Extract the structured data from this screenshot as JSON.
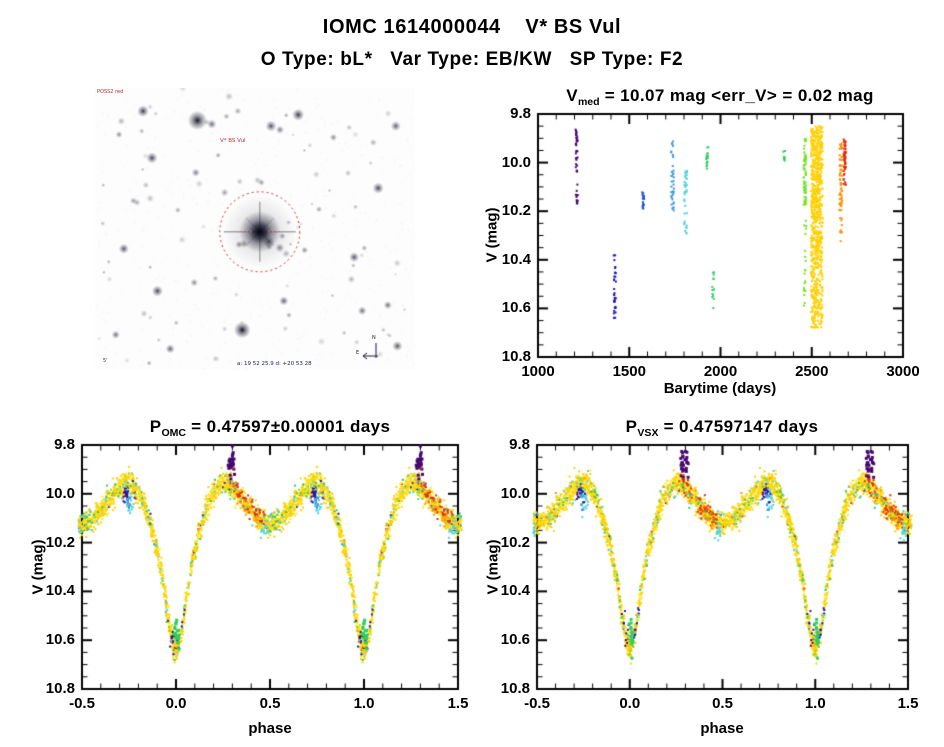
{
  "page": {
    "title": "IOMC 1614000044    V* BS Vul",
    "subtitle": "O Type: bL*   Var Type: EB/KW   SP Type: F2"
  },
  "palette": {
    "purple": "#46086e",
    "navy": "#1b18b4",
    "blue": "#2053d4",
    "steel": "#3b96dc",
    "cyan": "#4fd2d8",
    "green": "#2ecf62",
    "green2": "#27d046",
    "lightgreen": "#72e229",
    "gold": "#fdd005",
    "yellow": "#ffe81e",
    "orange": "#fd9303",
    "red": "#e22d0d"
  },
  "finder": {
    "description": "grayscale sky survey finding chart with target circled",
    "circle_color": "#cc2a2a",
    "annotations": {
      "survey": "POSS2 red",
      "target": "V* BS Vul",
      "coords": "a: 19 52 25.9  d: +20 53 28",
      "scale": "5'",
      "compass_n": "N",
      "compass_e": "E"
    },
    "stars": [
      [
        0.515,
        0.51,
        9.0,
        1.0
      ],
      [
        0.32,
        0.115,
        4.2,
        0.92
      ],
      [
        0.365,
        0.128,
        2.0,
        0.6
      ],
      [
        0.15,
        0.082,
        2.5,
        0.8
      ],
      [
        0.55,
        0.135,
        2.4,
        0.7
      ],
      [
        0.578,
        0.148,
        1.8,
        0.55
      ],
      [
        0.635,
        0.095,
        2.6,
        0.8
      ],
      [
        0.94,
        0.135,
        2.2,
        0.65
      ],
      [
        0.745,
        0.175,
        1.6,
        0.5
      ],
      [
        0.178,
        0.248,
        2.4,
        0.75
      ],
      [
        0.075,
        0.165,
        1.5,
        0.5
      ],
      [
        0.315,
        0.3,
        1.8,
        0.55
      ],
      [
        0.09,
        0.57,
        2.2,
        0.7
      ],
      [
        0.195,
        0.72,
        2.4,
        0.75
      ],
      [
        0.065,
        0.875,
        1.8,
        0.6
      ],
      [
        0.235,
        0.925,
        2.0,
        0.65
      ],
      [
        0.31,
        0.69,
        1.7,
        0.5
      ],
      [
        0.46,
        0.858,
        3.6,
        0.95
      ],
      [
        0.59,
        0.755,
        2.0,
        0.65
      ],
      [
        0.655,
        0.575,
        1.5,
        0.5
      ],
      [
        0.81,
        0.6,
        2.2,
        0.7
      ],
      [
        0.885,
        0.355,
        2.4,
        0.75
      ],
      [
        0.915,
        0.77,
        1.8,
        0.6
      ],
      [
        0.945,
        0.915,
        2.2,
        0.7
      ],
      [
        0.835,
        0.79,
        1.9,
        0.6
      ],
      [
        0.52,
        0.335,
        1.5,
        0.45
      ],
      [
        0.45,
        0.555,
        1.6,
        0.5
      ],
      [
        0.585,
        0.525,
        1.5,
        0.45
      ],
      [
        0.7,
        0.43,
        1.4,
        0.42
      ],
      [
        0.12,
        0.4,
        1.5,
        0.45
      ]
    ],
    "n_faint_stars": 80,
    "seed": 5
  },
  "chart_data": [
    {
      "id": "timeseries",
      "type": "scatter",
      "title": {
        "prefix": "V",
        "sub": "med",
        "rest": " = 10.07 mag <err_V> = 0.02 mag"
      },
      "xlabel": "Barytime (days)",
      "ylabel": "V (mag)",
      "xlim": [
        1000,
        3000
      ],
      "ylim": [
        9.8,
        10.8
      ],
      "y_inverted": true,
      "xticks": [
        1000,
        1500,
        2000,
        2500,
        3000
      ],
      "xtick_labels": [
        "1000",
        "1500",
        "2000",
        "2500",
        "3000"
      ],
      "yticks": [
        9.8,
        10.0,
        10.2,
        10.4,
        10.6,
        10.8
      ],
      "ytick_labels": [
        "9.8",
        "10.0",
        "10.2",
        "10.4",
        "10.6",
        "10.8"
      ],
      "x_minor_step": 100,
      "y_minor_step": 0.05,
      "seed": 7,
      "clusters": [
        {
          "t": 1212,
          "dt": 6,
          "color": "purple",
          "mags": [
            [
              9.86,
              9.93,
              16
            ],
            [
              9.95,
              10.04,
              14
            ],
            [
              10.09,
              10.17,
              14
            ]
          ]
        },
        {
          "t": 1421,
          "dt": 6,
          "color": "navy",
          "mags": [
            [
              10.38,
              10.47,
              10
            ],
            [
              10.48,
              10.64,
              22
            ]
          ]
        },
        {
          "t": 1576,
          "dt": 6,
          "color": "blue",
          "mags": [
            [
              10.1,
              10.19,
              18
            ]
          ]
        },
        {
          "t": 1737,
          "dt": 8,
          "color": "steel",
          "mags": [
            [
              9.9,
              9.98,
              8
            ],
            [
              9.99,
              10.08,
              10
            ],
            [
              10.09,
              10.2,
              18
            ]
          ]
        },
        {
          "t": 1809,
          "dt": 8,
          "color": "cyan",
          "mags": [
            [
              10.03,
              10.16,
              24
            ],
            [
              10.17,
              10.31,
              12
            ]
          ]
        },
        {
          "t": 1927,
          "dt": 6,
          "color": "green",
          "mags": [
            [
              9.93,
              10.03,
              18
            ]
          ]
        },
        {
          "t": 1960,
          "dt": 5,
          "color": "green",
          "mags": [
            [
              10.42,
              10.61,
              14
            ]
          ]
        },
        {
          "t": 2348,
          "dt": 5,
          "color": "green2",
          "mags": [
            [
              9.94,
              10.0,
              9
            ]
          ]
        },
        {
          "t": 2463,
          "dt": 7,
          "color": "lightgreen",
          "mags": [
            [
              9.9,
              10.18,
              60
            ],
            [
              10.2,
              10.6,
              20
            ]
          ]
        },
        {
          "t": 2528,
          "dt": 32,
          "color": "gold",
          "mags": [
            [
              9.85,
              10.35,
              520
            ],
            [
              10.35,
              10.68,
              240
            ]
          ]
        },
        {
          "t": 2659,
          "dt": 7,
          "color": "orange",
          "mags": [
            [
              9.92,
              10.18,
              55
            ],
            [
              10.19,
              10.33,
              12
            ]
          ]
        },
        {
          "t": 2681,
          "dt": 6,
          "color": "red",
          "mags": [
            [
              9.9,
              10.1,
              55
            ]
          ]
        }
      ]
    },
    {
      "id": "lc_omc",
      "type": "scatter",
      "title": {
        "prefix": "P",
        "sub": "OMC",
        "rest": " = 0.47597±0.00001 days"
      },
      "xlabel": "phase",
      "ylabel": "V (mag)",
      "xlim": [
        -0.5,
        1.5
      ],
      "ylim": [
        9.8,
        10.8
      ],
      "y_inverted": true,
      "xticks": [
        -0.5,
        0.0,
        0.5,
        1.0,
        1.5
      ],
      "xtick_labels": [
        "-0.5",
        "0.0",
        "0.5",
        "1.0",
        "1.5"
      ],
      "yticks": [
        9.8,
        10.0,
        10.2,
        10.4,
        10.6,
        10.8
      ],
      "ytick_labels": [
        "9.8",
        "10.0",
        "10.2",
        "10.4",
        "10.6",
        "10.8"
      ],
      "x_minor_step": 0.1,
      "y_minor_step": 0.05,
      "seed": 11,
      "n_points": 1500,
      "scatter_sigma": 0.022,
      "curve": [
        [
          0.0,
          10.625
        ],
        [
          0.015,
          10.615
        ],
        [
          0.03,
          10.565
        ],
        [
          0.05,
          10.46
        ],
        [
          0.07,
          10.35
        ],
        [
          0.09,
          10.265
        ],
        [
          0.11,
          10.2
        ],
        [
          0.14,
          10.115
        ],
        [
          0.17,
          10.045
        ],
        [
          0.2,
          9.995
        ],
        [
          0.23,
          9.965
        ],
        [
          0.25,
          9.955
        ],
        [
          0.27,
          9.958
        ],
        [
          0.3,
          9.975
        ],
        [
          0.34,
          10.01
        ],
        [
          0.38,
          10.05
        ],
        [
          0.42,
          10.085
        ],
        [
          0.46,
          10.11
        ],
        [
          0.5,
          10.125
        ],
        [
          0.54,
          10.11
        ],
        [
          0.58,
          10.085
        ],
        [
          0.62,
          10.05
        ],
        [
          0.66,
          10.01
        ],
        [
          0.7,
          9.975
        ],
        [
          0.73,
          9.958
        ],
        [
          0.75,
          9.955
        ],
        [
          0.77,
          9.965
        ],
        [
          0.8,
          9.995
        ],
        [
          0.83,
          10.045
        ],
        [
          0.86,
          10.115
        ],
        [
          0.89,
          10.2
        ],
        [
          0.91,
          10.265
        ],
        [
          0.93,
          10.35
        ],
        [
          0.95,
          10.46
        ],
        [
          0.97,
          10.565
        ],
        [
          0.985,
          10.615
        ],
        [
          1.0,
          10.625
        ]
      ],
      "accents": [
        {
          "color": "purple",
          "mode": "free",
          "p": 0.295,
          "dp": 0.02,
          "m": 9.885,
          "dm": 0.03,
          "n": 26,
          "size": 3
        },
        {
          "color": "purple",
          "mode": "free",
          "p": 0.73,
          "dp": 0.015,
          "m": 10.0,
          "dm": 0.025,
          "n": 12,
          "size": 2
        },
        {
          "color": "purple",
          "mode": "free",
          "p": 0.985,
          "dp": 0.01,
          "m": 10.6,
          "dm": 0.03,
          "n": 6,
          "size": 2
        },
        {
          "color": "red",
          "mode": "curve",
          "p0": 0.28,
          "p1": 0.47,
          "off": -0.01,
          "dm": 0.025,
          "n": 55,
          "size": 2
        },
        {
          "color": "orange",
          "mode": "curve",
          "p0": 0.3,
          "p1": 0.45,
          "off": 0.012,
          "dm": 0.02,
          "n": 25,
          "size": 2
        },
        {
          "color": "cyan",
          "mode": "free",
          "p": 0.755,
          "dp": 0.02,
          "m": 10.035,
          "dm": 0.03,
          "n": 18,
          "size": 2
        },
        {
          "color": "cyan",
          "mode": "free",
          "p": 0.47,
          "dp": 0.02,
          "m": 10.15,
          "dm": 0.02,
          "n": 14,
          "size": 2
        },
        {
          "color": "steel",
          "mode": "free",
          "p": 0.745,
          "dp": 0.012,
          "m": 10.02,
          "dm": 0.02,
          "n": 10,
          "size": 2
        },
        {
          "color": "navy",
          "mode": "free",
          "p": 0.74,
          "dp": 0.02,
          "m": 10.0,
          "dm": 0.03,
          "n": 10,
          "size": 2
        },
        {
          "color": "navy",
          "mode": "curve",
          "p0": -0.05,
          "p1": 0.05,
          "off": 0.0,
          "dm": 0.03,
          "n": 16,
          "size": 2
        },
        {
          "color": "green",
          "mode": "free",
          "p": 0.005,
          "dp": 0.012,
          "m": 10.58,
          "dm": 0.035,
          "n": 20,
          "size": 3
        },
        {
          "color": "green",
          "mode": "curve",
          "p0": 0.0,
          "p1": 1.0,
          "off": 0.0,
          "dm": 0.03,
          "n": 40,
          "size": 2
        },
        {
          "color": "cyan",
          "mode": "curve",
          "p0": 0.0,
          "p1": 1.0,
          "off": 0.01,
          "dm": 0.03,
          "n": 25,
          "size": 2
        },
        {
          "color": "gold",
          "mode": "free",
          "p": 0.0,
          "dp": 0.01,
          "m": 10.64,
          "dm": 0.03,
          "n": 14,
          "size": 2
        }
      ]
    },
    {
      "id": "lc_vsx",
      "type": "scatter",
      "title": {
        "prefix": "P",
        "sub": "VSX",
        "rest": " = 0.47597147 days"
      },
      "xlabel": "phase",
      "ylabel": "V (mag)",
      "xlim": [
        -0.5,
        1.5
      ],
      "ylim": [
        9.8,
        10.8
      ],
      "y_inverted": true,
      "xticks": [
        -0.5,
        0.0,
        0.5,
        1.0,
        1.5
      ],
      "xtick_labels": [
        "-0.5",
        "0.0",
        "0.5",
        "1.0",
        "1.5"
      ],
      "yticks": [
        9.8,
        10.0,
        10.2,
        10.4,
        10.6,
        10.8
      ],
      "ytick_labels": [
        "9.8",
        "10.0",
        "10.2",
        "10.4",
        "10.6",
        "10.8"
      ],
      "x_minor_step": 0.1,
      "y_minor_step": 0.05,
      "seed": 13,
      "n_points": 1500,
      "scatter_sigma": 0.022,
      "curve": [
        [
          0.0,
          10.625
        ],
        [
          0.015,
          10.615
        ],
        [
          0.03,
          10.565
        ],
        [
          0.05,
          10.46
        ],
        [
          0.07,
          10.35
        ],
        [
          0.09,
          10.265
        ],
        [
          0.11,
          10.2
        ],
        [
          0.14,
          10.115
        ],
        [
          0.17,
          10.045
        ],
        [
          0.2,
          9.995
        ],
        [
          0.23,
          9.965
        ],
        [
          0.25,
          9.955
        ],
        [
          0.27,
          9.958
        ],
        [
          0.3,
          9.975
        ],
        [
          0.34,
          10.01
        ],
        [
          0.38,
          10.05
        ],
        [
          0.42,
          10.085
        ],
        [
          0.46,
          10.11
        ],
        [
          0.5,
          10.125
        ],
        [
          0.54,
          10.11
        ],
        [
          0.58,
          10.085
        ],
        [
          0.62,
          10.05
        ],
        [
          0.66,
          10.01
        ],
        [
          0.7,
          9.975
        ],
        [
          0.73,
          9.958
        ],
        [
          0.75,
          9.955
        ],
        [
          0.77,
          9.965
        ],
        [
          0.8,
          9.995
        ],
        [
          0.83,
          10.045
        ],
        [
          0.86,
          10.115
        ],
        [
          0.89,
          10.2
        ],
        [
          0.91,
          10.265
        ],
        [
          0.93,
          10.35
        ],
        [
          0.95,
          10.46
        ],
        [
          0.97,
          10.565
        ],
        [
          0.985,
          10.615
        ],
        [
          1.0,
          10.625
        ]
      ],
      "accents": [
        {
          "color": "purple",
          "mode": "free",
          "p": 0.295,
          "dp": 0.02,
          "m": 9.885,
          "dm": 0.03,
          "n": 26,
          "size": 3
        },
        {
          "color": "purple",
          "mode": "free",
          "p": 0.73,
          "dp": 0.015,
          "m": 10.0,
          "dm": 0.025,
          "n": 12,
          "size": 2
        },
        {
          "color": "purple",
          "mode": "free",
          "p": 0.985,
          "dp": 0.01,
          "m": 10.6,
          "dm": 0.03,
          "n": 6,
          "size": 2
        },
        {
          "color": "red",
          "mode": "curve",
          "p0": 0.28,
          "p1": 0.47,
          "off": -0.01,
          "dm": 0.025,
          "n": 55,
          "size": 2
        },
        {
          "color": "orange",
          "mode": "curve",
          "p0": 0.3,
          "p1": 0.45,
          "off": 0.012,
          "dm": 0.02,
          "n": 25,
          "size": 2
        },
        {
          "color": "cyan",
          "mode": "free",
          "p": 0.755,
          "dp": 0.02,
          "m": 10.035,
          "dm": 0.03,
          "n": 18,
          "size": 2
        },
        {
          "color": "cyan",
          "mode": "free",
          "p": 0.47,
          "dp": 0.02,
          "m": 10.15,
          "dm": 0.02,
          "n": 14,
          "size": 2
        },
        {
          "color": "steel",
          "mode": "free",
          "p": 0.745,
          "dp": 0.012,
          "m": 10.02,
          "dm": 0.02,
          "n": 10,
          "size": 2
        },
        {
          "color": "navy",
          "mode": "free",
          "p": 0.74,
          "dp": 0.02,
          "m": 10.0,
          "dm": 0.03,
          "n": 10,
          "size": 2
        },
        {
          "color": "navy",
          "mode": "curve",
          "p0": -0.05,
          "p1": 0.05,
          "off": 0.0,
          "dm": 0.03,
          "n": 16,
          "size": 2
        },
        {
          "color": "green",
          "mode": "free",
          "p": 0.005,
          "dp": 0.012,
          "m": 10.58,
          "dm": 0.035,
          "n": 20,
          "size": 3
        },
        {
          "color": "green",
          "mode": "curve",
          "p0": 0.0,
          "p1": 1.0,
          "off": 0.0,
          "dm": 0.03,
          "n": 40,
          "size": 2
        },
        {
          "color": "cyan",
          "mode": "curve",
          "p0": 0.0,
          "p1": 1.0,
          "off": 0.01,
          "dm": 0.03,
          "n": 25,
          "size": 2
        },
        {
          "color": "gold",
          "mode": "free",
          "p": 0.0,
          "dp": 0.01,
          "m": 10.64,
          "dm": 0.03,
          "n": 14,
          "size": 2
        }
      ]
    }
  ]
}
